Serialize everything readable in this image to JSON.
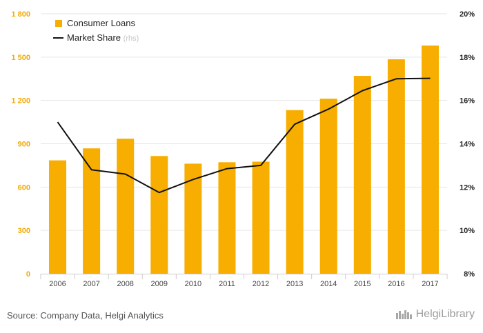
{
  "chart_data": {
    "type": "bar",
    "categories": [
      "2006",
      "2007",
      "2008",
      "2009",
      "2010",
      "2011",
      "2012",
      "2013",
      "2014",
      "2015",
      "2016",
      "2017"
    ],
    "series": [
      {
        "name": "Consumer Loans",
        "type": "bar",
        "axis": "left",
        "values": [
          785,
          868,
          935,
          815,
          762,
          772,
          776,
          1133,
          1212,
          1370,
          1485,
          1580
        ]
      },
      {
        "name": "Market Share",
        "name_suffix": "(rhs)",
        "type": "line",
        "axis": "right",
        "values": [
          15.0,
          12.8,
          12.6,
          11.75,
          12.35,
          12.85,
          13.0,
          14.9,
          15.6,
          16.45,
          17.0,
          17.02
        ]
      }
    ],
    "y_left": {
      "min": 0,
      "max": 1800,
      "ticks": [
        0,
        300,
        600,
        900,
        1200,
        1500,
        1800
      ],
      "tick_labels": [
        "0",
        "300",
        "600",
        "900",
        "1 200",
        "1 500",
        "1 800"
      ]
    },
    "y_right": {
      "min": 8,
      "max": 20,
      "ticks": [
        8,
        10,
        12,
        14,
        16,
        18,
        20
      ],
      "tick_labels": [
        "8%",
        "10%",
        "12%",
        "14%",
        "16%",
        "18%",
        "20%"
      ]
    },
    "grid": true,
    "legend_position": "top-left",
    "colors": {
      "bar": "#F7AE00",
      "line": "#111111",
      "left_axis_text": "#F2A900",
      "right_axis_text": "#222222",
      "grid": "#e6e6e6",
      "muted": "#c4c4c4"
    }
  },
  "footer": {
    "source": "Source: Company Data, Helgi Analytics",
    "logo_text": "HelgiLibrary"
  }
}
